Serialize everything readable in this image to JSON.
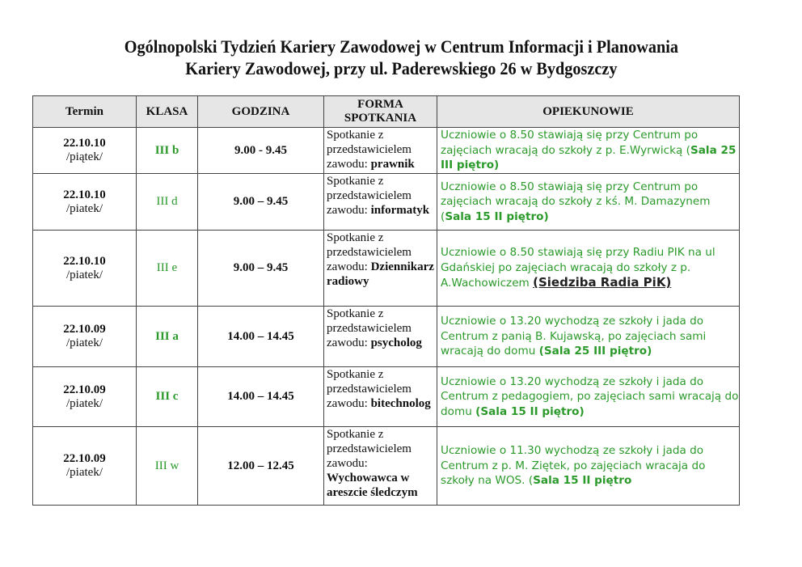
{
  "title": {
    "line1": "Ogólnopolski Tydzień Kariery Zawodowej w Centrum Informacji i Planowania",
    "line2": "Kariery Zawodowej, przy ul. Paderewskiego 26 w Bydgoszczy"
  },
  "colors": {
    "accent_green": "#2b9a2b",
    "header_bg": "#e6e6e6"
  },
  "table": {
    "headers": {
      "termin": "Termin",
      "klasa": "KLASA",
      "godzina": "GODZINA",
      "forma": "FORMA SPOTKANIA",
      "opiekunowie": "OPIEKUNOWIE"
    },
    "rows": [
      {
        "date": "22.10.10",
        "day": "/piątek/",
        "klasa": "III b",
        "time": "9.00 -  9.45",
        "forma_prefix": "Spotkanie z przedstawicielem zawodu: ",
        "forma_bold": "prawnik",
        "op_text": "Uczniowie o 8.50 stawiają się przy Centrum po zajęciach wracają do szkoły z p. E.Wyrwicką (",
        "op_bold": "Sala 25 III piętro)",
        "op_tail": ""
      },
      {
        "date": "22.10.10",
        "day": "/piatek/",
        "klasa": "III d",
        "time": "9.00 – 9.45",
        "forma_prefix": "Spotkanie z przedstawicielem zawodu: ",
        "forma_bold": "informatyk",
        "op_text": " Uczniowie o 8.50 stawiają się przy Centrum po zajęciach wracają do szkoły z kś. M. Damazynem (",
        "op_bold": "Sala 15 II piętro)",
        "op_tail": ""
      },
      {
        "date": "22.10.10",
        "day": "/piatek/",
        "klasa": "III e",
        "time": "9.00 – 9.45",
        "forma_prefix": "Spotkanie z przedstawicielem zawodu: ",
        "forma_bold": "Dziennikarz radiowy",
        "op_text": "Uczniowie o 8.50 stawiają się przy Radiu PIK na ul Gdańskiej po zajęciach wracają do szkoły z p. A.Wachowiczem ",
        "op_bold": "(Siedziba Radia PiK)",
        "op_tail": ""
      },
      {
        "date": "22.10.09",
        "day": "/piatek/",
        "klasa": "III a",
        "time": "14.00 – 14.45",
        "forma_prefix": "Spotkanie z przedstawicielem zawodu: ",
        "forma_bold": "psycholog",
        "op_text": "Uczniowie o 13.20 wychodzą ze szkoły i jada do Centrum z panią B. Kujawską, po zajęciach sami wracają do domu ",
        "op_bold": "(Sala 25 III piętro)",
        "op_tail": ""
      },
      {
        "date": "22.10.09",
        "day": "/piatek/",
        "klasa": "III c",
        "time": "14.00 – 14.45",
        "forma_prefix": "Spotkanie z przedstawicielem zawodu: ",
        "forma_bold": "bitechnolog",
        "op_text": "Uczniowie o 13.20 wychodzą ze szkoły i jada do Centrum z pedagogiem, po zajęciach sami wracają do domu ",
        "op_bold": "(Sala 15 II piętro)",
        "op_tail": ""
      },
      {
        "date": "22.10.09",
        "day": "/piatek/",
        "klasa": "III w",
        "time": "12.00 – 12.45",
        "forma_prefix": "Spotkanie z przedstawicielem zawodu: ",
        "forma_bold": "Wychowawca w areszcie śledczym",
        "op_text": "Uczniowie o 11.30 wychodzą ze szkoły i jada do Centrum z p. M. Ziętek, po zajęciach wracaja do szkoły na WOS. (",
        "op_bold": "Sala 15 II piętro",
        "op_tail": ""
      }
    ]
  }
}
